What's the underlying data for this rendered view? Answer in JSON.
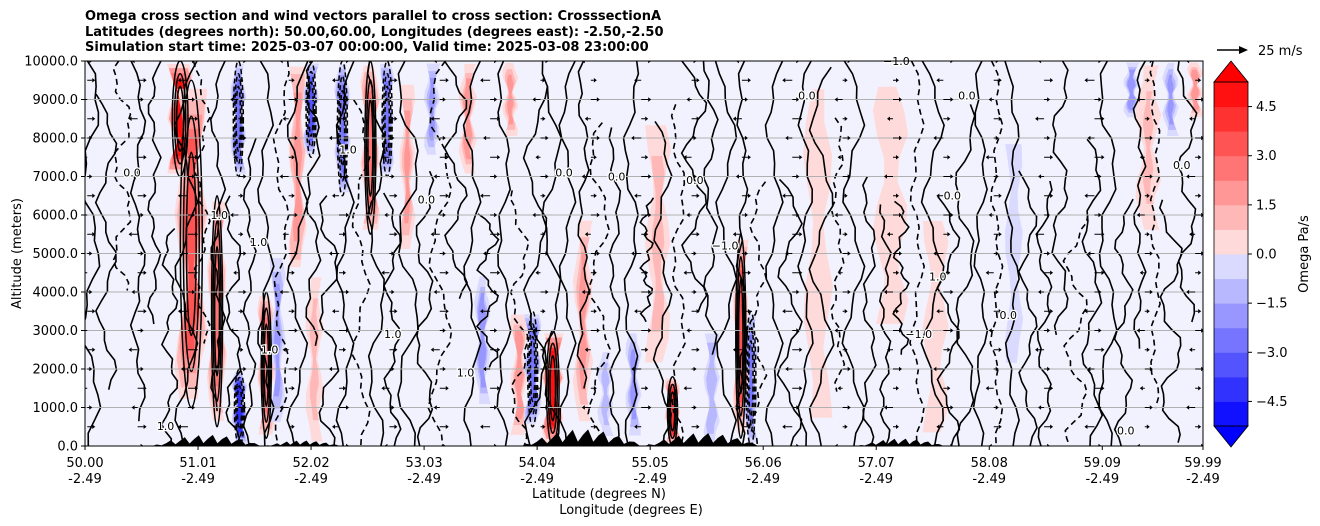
{
  "title_lines": [
    "Omega cross section and wind vectors parallel to cross section: CrosssectionA",
    "Latitudes (degrees north): 50.00,60.00, Longitudes (degrees east): -2.50,-2.50",
    "Simulation start time: 2025-03-07 00:00:00, Valid time: 2025-03-08 23:00:00"
  ],
  "chart_data": {
    "type": "heatmap",
    "title": "Omega cross section and wind vectors parallel to cross section: CrosssectionA",
    "ylabel": "Altitude (meters)",
    "xlabel_lines": [
      "Latitude (degrees N)",
      "Longitude (degrees E)"
    ],
    "x_range": [
      50.0,
      59.99
    ],
    "y_range": [
      0,
      10000
    ],
    "x_ticks": [
      {
        "value": 50.0,
        "lat": "50.00",
        "lon": "-2.49"
      },
      {
        "value": 51.01,
        "lat": "51.01",
        "lon": "-2.49"
      },
      {
        "value": 52.02,
        "lat": "52.02",
        "lon": "-2.49"
      },
      {
        "value": 53.03,
        "lat": "53.03",
        "lon": "-2.49"
      },
      {
        "value": 54.04,
        "lat": "54.04",
        "lon": "-2.49"
      },
      {
        "value": 55.05,
        "lat": "55.05",
        "lon": "-2.49"
      },
      {
        "value": 56.06,
        "lat": "56.06",
        "lon": "-2.49"
      },
      {
        "value": 57.07,
        "lat": "57.07",
        "lon": "-2.49"
      },
      {
        "value": 58.08,
        "lat": "58.08",
        "lon": "-2.49"
      },
      {
        "value": 59.09,
        "lat": "59.09",
        "lon": "-2.49"
      },
      {
        "value": 59.99,
        "lat": "59.99",
        "lon": "-2.49"
      }
    ],
    "y_ticks": [
      {
        "value": 0,
        "label": "0.0"
      },
      {
        "value": 1000,
        "label": "1000.0"
      },
      {
        "value": 2000,
        "label": "2000.0"
      },
      {
        "value": 3000,
        "label": "3000.0"
      },
      {
        "value": 4000,
        "label": "4000.0"
      },
      {
        "value": 5000,
        "label": "5000.0"
      },
      {
        "value": 6000,
        "label": "6000.0"
      },
      {
        "value": 7000,
        "label": "7000.0"
      },
      {
        "value": 8000,
        "label": "8000.0"
      },
      {
        "value": 9000,
        "label": "9000.0"
      },
      {
        "value": 10000,
        "label": "10000.0"
      }
    ],
    "grid": "horizontal",
    "colorbar": {
      "label": "Omega Pa/s",
      "range": [
        -5.25,
        5.25
      ],
      "extend": "both",
      "levels": [
        -5.25,
        -4.5,
        -3.75,
        -3.0,
        -2.25,
        -1.5,
        -0.75,
        0.0,
        0.75,
        1.5,
        2.25,
        3.0,
        3.75,
        4.5,
        5.25
      ],
      "ticks": [
        {
          "value": 4.5,
          "label": "4.5"
        },
        {
          "value": 3.0,
          "label": "3.0"
        },
        {
          "value": 1.5,
          "label": "1.5"
        },
        {
          "value": 0.0,
          "label": "0.0"
        },
        {
          "value": -1.5,
          "label": "−1.5"
        },
        {
          "value": -3.0,
          "label": "−3.0"
        },
        {
          "value": -4.5,
          "label": "−4.5"
        }
      ],
      "neg_color": "#0000ff",
      "pos_color": "#ff0000",
      "mid_color": "#ffffff"
    },
    "quiver_key": {
      "label": "25 m/s",
      "speed": 25
    },
    "contour_lines": [
      -1.0,
      0.0,
      1.0
    ],
    "contour_labels": [
      {
        "x": 50.42,
        "y": 7000,
        "text": "0.0"
      },
      {
        "x": 50.72,
        "y": 420,
        "text": "1.0"
      },
      {
        "x": 51.2,
        "y": 5900,
        "text": "1.0"
      },
      {
        "x": 51.55,
        "y": 5200,
        "text": "1.0"
      },
      {
        "x": 51.65,
        "y": 2400,
        "text": "1.0"
      },
      {
        "x": 52.35,
        "y": 7600,
        "text": "1.0"
      },
      {
        "x": 52.75,
        "y": 2800,
        "text": "1.0"
      },
      {
        "x": 53.05,
        "y": 6300,
        "text": "0.0"
      },
      {
        "x": 53.4,
        "y": 1800,
        "text": "1.0"
      },
      {
        "x": 54.28,
        "y": 7000,
        "text": "0.0"
      },
      {
        "x": 54.75,
        "y": 6900,
        "text": "0.0"
      },
      {
        "x": 55.45,
        "y": 6800,
        "text": "0.0"
      },
      {
        "x": 55.72,
        "y": 5100,
        "text": "−1.0"
      },
      {
        "x": 56.45,
        "y": 9000,
        "text": "0.0"
      },
      {
        "x": 57.25,
        "y": 9900,
        "text": "−1.0"
      },
      {
        "x": 57.45,
        "y": 2800,
        "text": "−1.0"
      },
      {
        "x": 57.62,
        "y": 4300,
        "text": "1.0"
      },
      {
        "x": 57.75,
        "y": 6400,
        "text": "0.0"
      },
      {
        "x": 57.88,
        "y": 9000,
        "text": "0.0"
      },
      {
        "x": 58.25,
        "y": 3300,
        "text": "0.0"
      },
      {
        "x": 59.3,
        "y": 300,
        "text": "0.0"
      },
      {
        "x": 59.8,
        "y": 7200,
        "text": "0.0"
      }
    ],
    "features": [
      {
        "x": 50.85,
        "w": 0.1,
        "val": 4.8,
        "top": 1.0,
        "bot": 0.7
      },
      {
        "x": 50.95,
        "w": 0.14,
        "val": 3.2,
        "top": 0.95,
        "bot": 0.1
      },
      {
        "x": 51.18,
        "w": 0.07,
        "val": 2.6,
        "top": 0.65,
        "bot": 0.05
      },
      {
        "x": 51.37,
        "w": 0.05,
        "val": -2.8,
        "top": 1.0,
        "bot": 0.7
      },
      {
        "x": 51.38,
        "w": 0.05,
        "val": -4.0,
        "top": 0.2,
        "bot": 0.0
      },
      {
        "x": 51.62,
        "w": 0.06,
        "val": 2.5,
        "top": 0.4,
        "bot": 0.02
      },
      {
        "x": 51.72,
        "w": 0.05,
        "val": -1.6,
        "top": 0.5,
        "bot": 0.05
      },
      {
        "x": 51.9,
        "w": 0.06,
        "val": 2.2,
        "top": 1.0,
        "bot": 0.45
      },
      {
        "x": 52.02,
        "w": 0.05,
        "val": -3.2,
        "top": 1.0,
        "bot": 0.75
      },
      {
        "x": 52.05,
        "w": 0.06,
        "val": 1.2,
        "top": 0.45,
        "bot": 0.0
      },
      {
        "x": 52.3,
        "w": 0.05,
        "val": -2.6,
        "top": 1.0,
        "bot": 0.65
      },
      {
        "x": 52.55,
        "w": 0.07,
        "val": 2.6,
        "top": 1.0,
        "bot": 0.55
      },
      {
        "x": 52.7,
        "w": 0.04,
        "val": -2.6,
        "top": 1.0,
        "bot": 0.7
      },
      {
        "x": 52.88,
        "w": 0.05,
        "val": 1.5,
        "top": 0.95,
        "bot": 0.5
      },
      {
        "x": 53.1,
        "w": 0.05,
        "val": -1.7,
        "top": 1.0,
        "bot": 0.75
      },
      {
        "x": 53.42,
        "w": 0.06,
        "val": 2.0,
        "top": 1.0,
        "bot": 0.7
      },
      {
        "x": 53.55,
        "w": 0.05,
        "val": -1.8,
        "top": 0.45,
        "bot": 0.1
      },
      {
        "x": 53.8,
        "w": 0.05,
        "val": 1.6,
        "top": 1.0,
        "bot": 0.8
      },
      {
        "x": 53.88,
        "w": 0.06,
        "val": 2.0,
        "top": 0.35,
        "bot": 0.02
      },
      {
        "x": 54.0,
        "w": 0.06,
        "val": -2.8,
        "top": 0.35,
        "bot": 0.05
      },
      {
        "x": 54.18,
        "w": 0.08,
        "val": 4.5,
        "top": 0.3,
        "bot": 0.0
      },
      {
        "x": 54.45,
        "w": 0.07,
        "val": 1.7,
        "top": 0.6,
        "bot": 0.05
      },
      {
        "x": 54.65,
        "w": 0.05,
        "val": -1.2,
        "top": 0.25,
        "bot": 0.02
      },
      {
        "x": 54.9,
        "w": 0.05,
        "val": -1.6,
        "top": 0.3,
        "bot": 0.02
      },
      {
        "x": 55.25,
        "w": 0.05,
        "val": 4.2,
        "top": 0.18,
        "bot": 0.0
      },
      {
        "x": 55.12,
        "w": 0.1,
        "val": 1.1,
        "top": 0.85,
        "bot": 0.2
      },
      {
        "x": 55.6,
        "w": 0.05,
        "val": -1.3,
        "top": 0.3,
        "bot": 0.0
      },
      {
        "x": 55.86,
        "w": 0.05,
        "val": 3.2,
        "top": 0.55,
        "bot": 0.02
      },
      {
        "x": 55.95,
        "w": 0.04,
        "val": -2.5,
        "top": 0.35,
        "bot": 0.0
      },
      {
        "x": 56.55,
        "w": 0.12,
        "val": 0.6,
        "top": 0.95,
        "bot": 0.05
      },
      {
        "x": 57.2,
        "w": 0.15,
        "val": 0.5,
        "top": 0.95,
        "bot": 0.3
      },
      {
        "x": 57.6,
        "w": 0.1,
        "val": 0.5,
        "top": 0.6,
        "bot": 0.02
      },
      {
        "x": 58.3,
        "w": 0.06,
        "val": -0.6,
        "top": 0.8,
        "bot": 0.2
      },
      {
        "x": 59.35,
        "w": 0.05,
        "val": -2.0,
        "top": 1.0,
        "bot": 0.85
      },
      {
        "x": 59.5,
        "w": 0.1,
        "val": 0.8,
        "top": 1.0,
        "bot": 0.55
      },
      {
        "x": 59.7,
        "w": 0.05,
        "val": -1.6,
        "top": 1.0,
        "bot": 0.8
      },
      {
        "x": 59.92,
        "w": 0.05,
        "val": 1.8,
        "top": 1.0,
        "bot": 0.85
      }
    ]
  }
}
